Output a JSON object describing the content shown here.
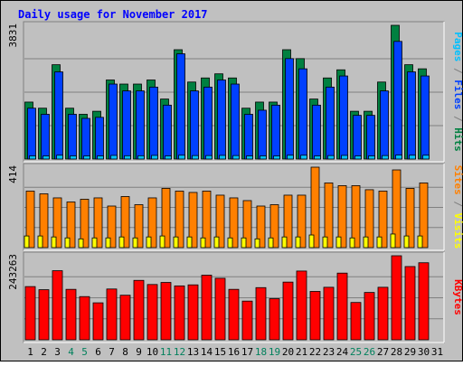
{
  "chart_data": {
    "type": "bar",
    "title": "Daily usage for November 2017",
    "categories": [
      "1",
      "2",
      "3",
      "4",
      "5",
      "6",
      "7",
      "8",
      "9",
      "10",
      "11",
      "12",
      "13",
      "14",
      "15",
      "16",
      "17",
      "18",
      "19",
      "20",
      "21",
      "22",
      "23",
      "24",
      "25",
      "26",
      "27",
      "28",
      "29",
      "30",
      "31"
    ],
    "weekend_days": [
      4,
      5,
      11,
      12,
      18,
      19,
      25,
      26
    ],
    "colors": {
      "background": "#C0C0C0",
      "title": "#0000FF",
      "hits": "#008040",
      "files": "#0040FF",
      "pages": "#00C0FF",
      "visits": "#FFFF00",
      "sites": "#FF8000",
      "kbytes": "#FF0000",
      "weekend_label": "#00805C",
      "grid": "#808080"
    },
    "panels": [
      {
        "id": "hits-panel",
        "max_label": "3831",
        "ymax": 3831,
        "ylabel_parts": [
          {
            "text": "Pages",
            "color": "#00C0FF"
          },
          {
            "text": " / ",
            "color": "#808080"
          },
          {
            "text": "Files",
            "color": "#0040FF"
          },
          {
            "text": " / ",
            "color": "#808080"
          },
          {
            "text": "Hits",
            "color": "#008040"
          }
        ],
        "series": [
          {
            "name": "Hits",
            "color": "#008040",
            "values": [
              1632,
              1457,
              2702,
              1457,
              1282,
              1369,
              2265,
              2148,
              2148,
              2265,
              1719,
              3132,
              2206,
              2323,
              2441,
              2323,
              1457,
              1632,
              1632,
              3132,
              2877,
              1719,
              2323,
              2556,
              1369,
              1369,
              2206,
              3831,
              2702,
              2585,
              0
            ]
          },
          {
            "name": "Files",
            "color": "#0040FF",
            "values": [
              1457,
              1282,
              2497,
              1282,
              1165,
              1195,
              2148,
              1952,
              1952,
              2061,
              1544,
              3015,
              1952,
              2061,
              2265,
              2148,
              1282,
              1399,
              1544,
              2877,
              2585,
              1544,
              2061,
              2380,
              1252,
              1252,
              1952,
              3370,
              2497,
              2380,
              0
            ]
          },
          {
            "name": "Pages",
            "color": "#00C0FF",
            "values": [
              90,
              90,
              110,
              90,
              90,
              90,
              105,
              95,
              95,
              105,
              90,
              110,
              100,
              100,
              105,
              100,
              90,
              90,
              90,
              110,
              110,
              90,
              100,
              105,
              90,
              90,
              100,
              115,
              110,
              110,
              0
            ]
          }
        ]
      },
      {
        "id": "visits-panel",
        "max_label": "414",
        "ymax": 414,
        "ylabel_parts": [
          {
            "text": "Sites",
            "color": "#FF8000"
          },
          {
            "text": " / ",
            "color": "#808080"
          },
          {
            "text": "Visits",
            "color": "#FFFF00"
          }
        ],
        "series": [
          {
            "name": "Visits",
            "color": "#FFFF00",
            "values": [
              60,
              60,
              55,
              50,
              45,
              50,
              50,
              55,
              50,
              55,
              60,
              55,
              55,
              50,
              55,
              50,
              50,
              45,
              50,
              55,
              55,
              65,
              55,
              55,
              50,
              55,
              55,
              70,
              60,
              60,
              0
            ]
          },
          {
            "name": "Sites",
            "color": "#FF8000",
            "values": [
              291,
              277,
              256,
              235,
              249,
              256,
              214,
              263,
              221,
              256,
              305,
              291,
              284,
              291,
              270,
              256,
              242,
              214,
              221,
              270,
              270,
              414,
              333,
              319,
              319,
              298,
              291,
              400,
              305,
              333,
              0
            ]
          }
        ]
      },
      {
        "id": "kbytes-panel",
        "max_label": "243263",
        "ymax": 243263,
        "ylabel_parts": [
          {
            "text": "KBytes",
            "color": "#FF0000"
          }
        ],
        "series": [
          {
            "name": "KBytes",
            "color": "#FF0000",
            "values": [
              154000,
              145000,
              200000,
              146000,
              125000,
              107000,
              147000,
              129000,
              172000,
              160000,
              166000,
              156000,
              159000,
              187000,
              178000,
              146000,
              112000,
              151000,
              119000,
              167000,
              199000,
              140000,
              152000,
              193000,
              108000,
              137000,
              152000,
              243263,
              212000,
              223000,
              0
            ]
          }
        ]
      }
    ]
  }
}
